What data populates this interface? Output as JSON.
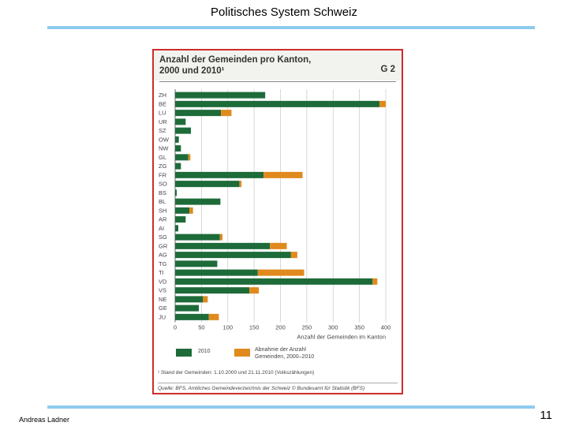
{
  "slide": {
    "title": "Politisches System Schweiz",
    "author": "Andreas Ladner",
    "page_number": "11"
  },
  "figure": {
    "title_line1": "Anzahl der Gemeinden pro Kanton,",
    "title_line2": "2000 und 2010¹",
    "code": "G 2",
    "legend_2010": "2010",
    "legend_decline_line1": "Abnahme der Anzahl",
    "legend_decline_line2": "Gemeinden, 2000–2010",
    "footnote": "¹ Stand der Gemeinden: 1.10.2000 und 21.11.2010 (Volkszählungen)",
    "source": "Quelle: BFS, Amtliches Gemeindeverzeichnis der Schweiz   © Bundesamt für Statistik (BFS)"
  },
  "colors": {
    "green": "#1e6b3a",
    "orange": "#e08a1e",
    "grid": "#c8c8c8",
    "border": "#d02b2b"
  },
  "chart_data": {
    "type": "bar",
    "orientation": "horizontal",
    "stacked": true,
    "categories": [
      "ZH",
      "BE",
      "LU",
      "UR",
      "SZ",
      "OW",
      "NW",
      "GL",
      "ZG",
      "FR",
      "SO",
      "BS",
      "BL",
      "SH",
      "AR",
      "AI",
      "SG",
      "GR",
      "AG",
      "TG",
      "TI",
      "VD",
      "VS",
      "NE",
      "GE",
      "JU"
    ],
    "series": [
      {
        "name": "2010",
        "values": [
          171,
          388,
          87,
          20,
          30,
          7,
          11,
          25,
          11,
          168,
          122,
          3,
          86,
          27,
          20,
          6,
          85,
          180,
          220,
          80,
          157,
          375,
          141,
          53,
          45,
          64
        ]
      },
      {
        "name": "Abnahme der Anzahl Gemeinden, 2000–2010",
        "values": [
          0,
          12,
          20,
          0,
          0,
          0,
          0,
          4,
          0,
          74,
          4,
          0,
          0,
          7,
          0,
          0,
          5,
          32,
          12,
          0,
          88,
          9,
          18,
          9,
          0,
          19
        ]
      }
    ],
    "xlabel": "Anzahl der Gemeinden im Kanton",
    "ylabel": "",
    "xlim": [
      0,
      400
    ],
    "xticks": [
      0,
      50,
      100,
      150,
      200,
      250,
      300,
      350,
      400
    ],
    "grid": true
  }
}
